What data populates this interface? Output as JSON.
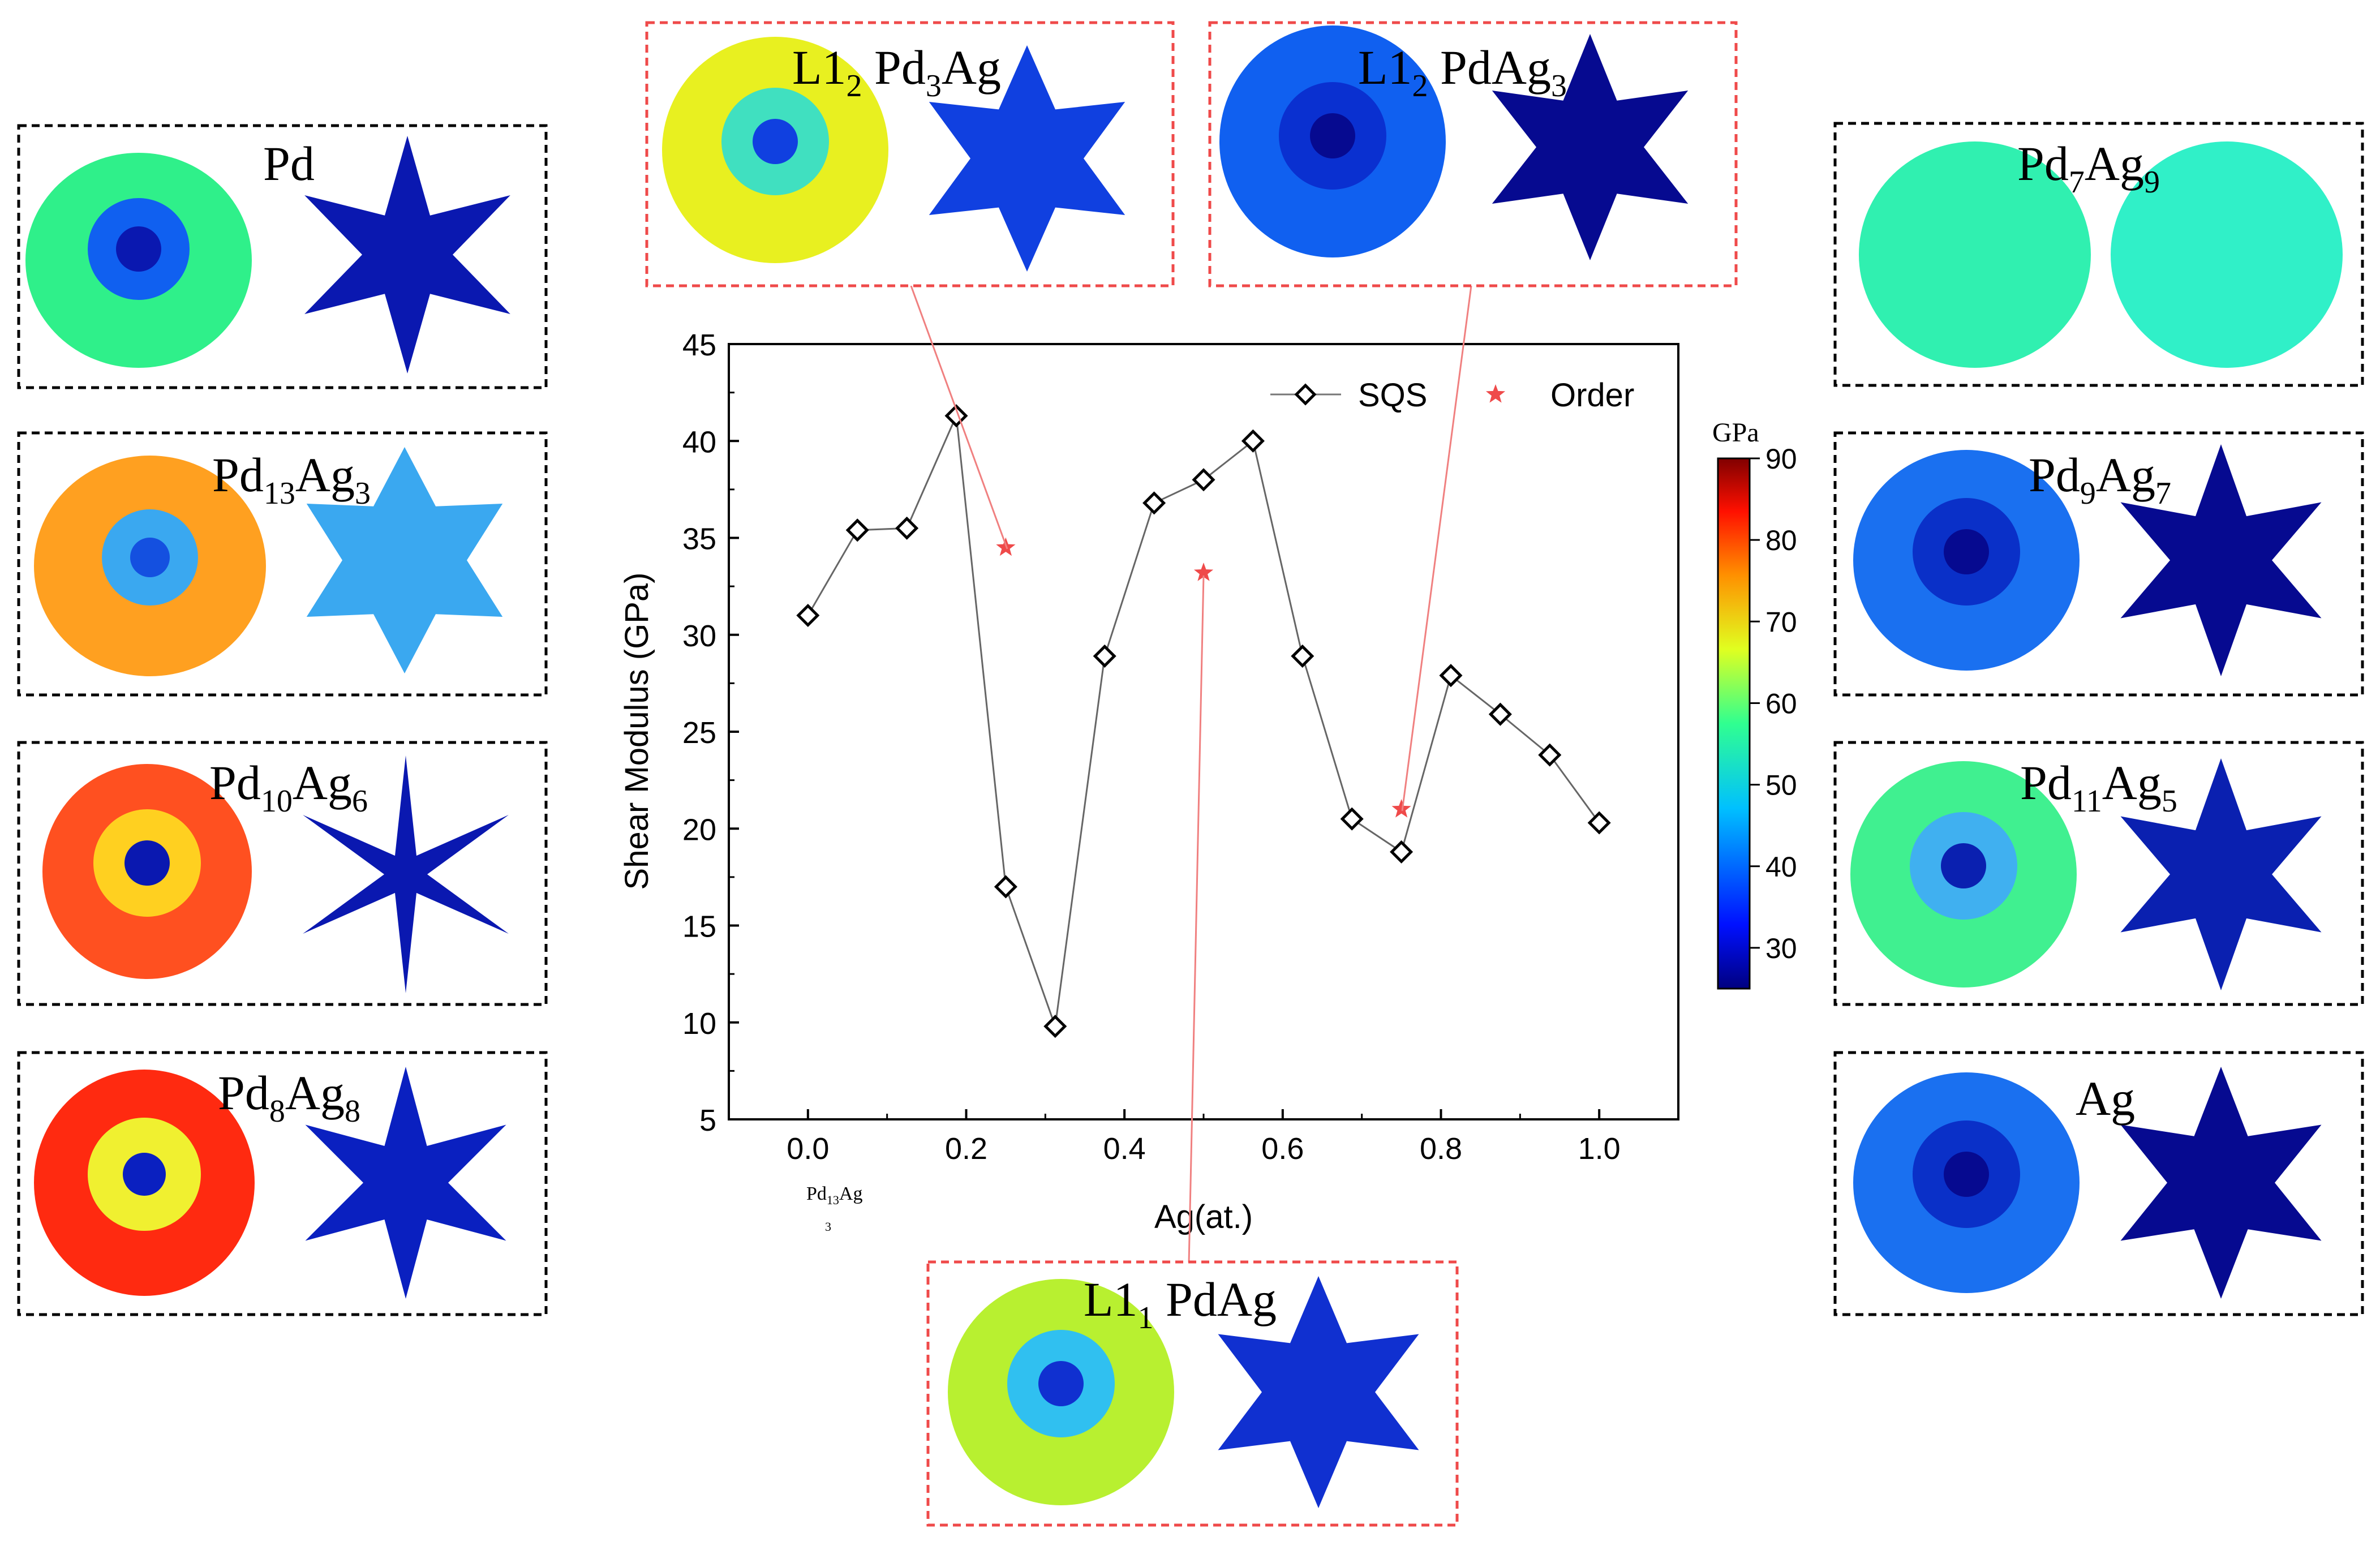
{
  "chart_data": {
    "type": "line",
    "xlabel": "Ag(at.)",
    "ylabel": "Shear Modulus (GPa)",
    "xlim": [
      -0.1,
      1.1
    ],
    "ylim": [
      5,
      45
    ],
    "xticks": [
      "0.0",
      "0.2",
      "0.4",
      "0.6",
      "0.8",
      "1.0"
    ],
    "yticks": [
      "5",
      "10",
      "15",
      "20",
      "25",
      "30",
      "35",
      "40",
      "45"
    ],
    "x_annotation": {
      "base": "Pd",
      "sub1": "13",
      "mid": "Ag",
      "sub2": "3"
    },
    "legend_position": "top-right",
    "series": [
      {
        "name": "SQS",
        "marker": "open-diamond",
        "color": "#000000",
        "x": [
          0.0,
          0.0625,
          0.125,
          0.1875,
          0.25,
          0.3125,
          0.375,
          0.4375,
          0.5,
          0.5625,
          0.625,
          0.6875,
          0.75,
          0.8125,
          0.875,
          0.9375,
          1.0
        ],
        "y": [
          31.0,
          35.4,
          35.5,
          41.3,
          17.0,
          9.8,
          28.9,
          36.8,
          38.0,
          40.0,
          28.9,
          20.5,
          18.8,
          27.9,
          25.9,
          23.8,
          20.3
        ]
      },
      {
        "name": "Order",
        "marker": "star",
        "color": "#ef4a4a",
        "x": [
          0.25,
          0.5,
          0.75
        ],
        "y": [
          34.5,
          33.2,
          21.0
        ]
      }
    ]
  },
  "colorbar": {
    "unit": "GPa",
    "min": 25,
    "max": 90,
    "ticks": [
      "30",
      "40",
      "50",
      "60",
      "70",
      "80",
      "90"
    ]
  },
  "panels": {
    "pd": {
      "base": "Pd",
      "color_a": "#2ff08a",
      "color_b": "#1060f0",
      "color_c": "#0a18b0"
    },
    "pd13ag3": {
      "b1": "Pd",
      "s1": "13",
      "b2": "Ag",
      "s2": "3",
      "color_a": "#ffa020",
      "color_b": "#3aa8f0",
      "color_c": "#1450e0"
    },
    "pd10ag6": {
      "b1": "Pd",
      "s1": "10",
      "b2": "Ag",
      "s2": "6",
      "color_a": "#ff5020",
      "color_b": "#ffd020",
      "color_c": "#0a18b0"
    },
    "pd8ag8": {
      "b1": "Pd",
      "s1": "8",
      "b2": "Ag",
      "s2": "8",
      "color_a": "#ff2a10",
      "color_b": "#f0f030",
      "color_c": "#0a20c0"
    },
    "l12pd3ag": {
      "b1": "L1",
      "s1": "2",
      "b2": " Pd",
      "s2": "3",
      "b3": "Ag",
      "color_a": "#e8f020",
      "color_b": "#40e0c0",
      "color_c": "#1040e0"
    },
    "l12pdag3": {
      "b1": "L1",
      "s1": "2",
      "b2": " PdAg",
      "s2": "3",
      "color_a": "#1060f0",
      "color_b": "#0a30d0",
      "color_c": "#060a90"
    },
    "l11pdag": {
      "b1": "L1",
      "s1": "1",
      "b2": " PdAg",
      "color_a": "#b8f030",
      "color_b": "#30c0f0",
      "color_c": "#1030d0"
    },
    "pd7ag9": {
      "b1": "Pd",
      "s1": "7",
      "b2": "Ag",
      "s2": "9",
      "color_a": "#30f0b0",
      "color_b": "#30f0c8",
      "color_c": "#30f0c0"
    },
    "pd9ag7": {
      "b1": "Pd",
      "s1": "9",
      "b2": "Ag",
      "s2": "7",
      "color_a": "#1a70f0",
      "color_b": "#0a30c8",
      "color_c": "#060a90"
    },
    "pd11ag5": {
      "b1": "Pd",
      "s1": "11",
      "b2": "Ag",
      "s2": "5",
      "color_a": "#40f090",
      "color_b": "#40b0f0",
      "color_c": "#0a20b0"
    },
    "ag": {
      "base": "Ag",
      "color_a": "#1a70f0",
      "color_b": "#0a30c8",
      "color_c": "#060a90"
    }
  }
}
